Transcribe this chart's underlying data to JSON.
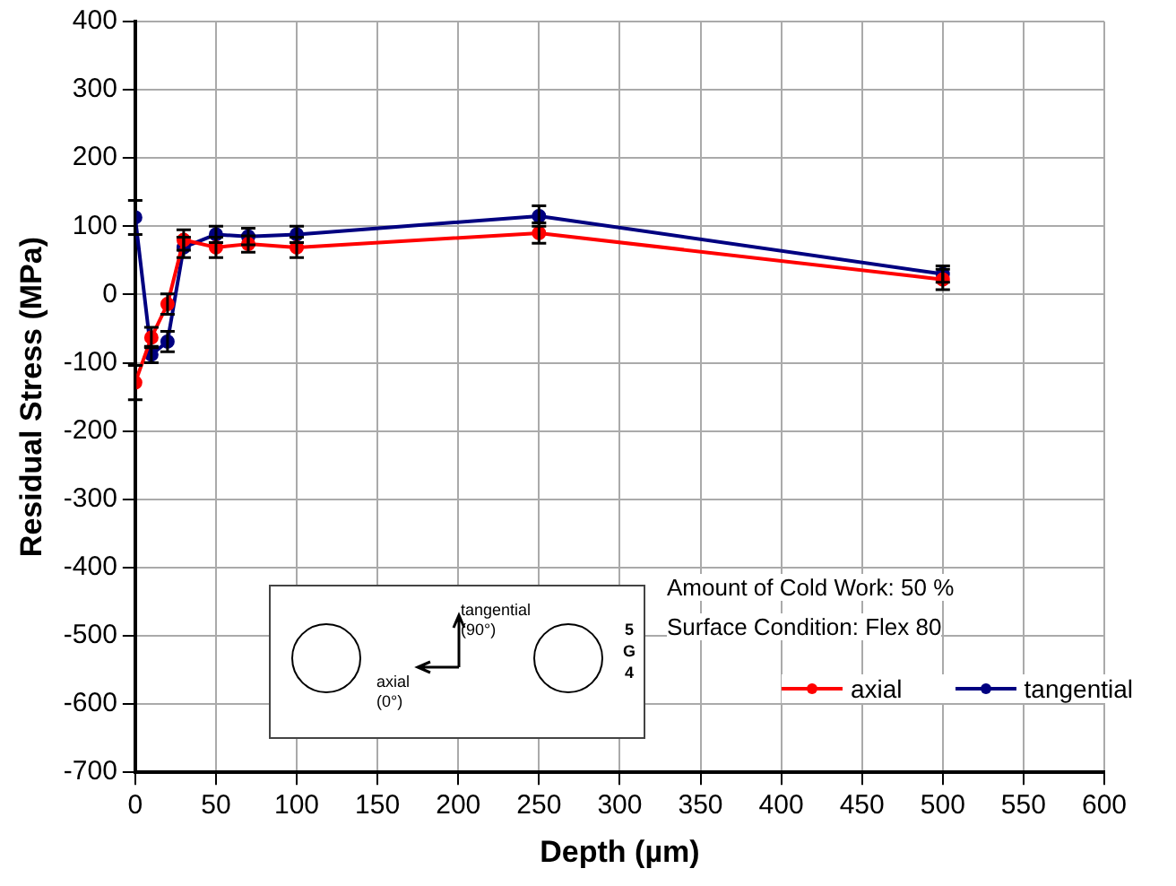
{
  "chart_data": {
    "type": "line",
    "xlabel": "Depth (µm)",
    "ylabel": "Residual Stress (MPa)",
    "x": [
      0,
      10,
      20,
      30,
      50,
      70,
      100,
      250,
      500
    ],
    "series": [
      {
        "name": "axial",
        "color": "#ff0000",
        "values": [
          -129,
          -63,
          -14,
          80,
          69,
          74,
          69,
          90,
          22
        ],
        "errors": [
          25,
          15,
          15,
          15,
          15,
          12,
          15,
          15,
          15
        ]
      },
      {
        "name": "tangential",
        "color": "#000080",
        "values": [
          113,
          -88,
          -69,
          69,
          88,
          85,
          88,
          115,
          30
        ],
        "errors": [
          25,
          12,
          15,
          15,
          12,
          12,
          12,
          15,
          12
        ]
      }
    ],
    "xlim": [
      0,
      600
    ],
    "xticks": [
      0,
      50,
      100,
      150,
      200,
      250,
      300,
      350,
      400,
      450,
      500,
      550,
      600
    ],
    "ylim": [
      -700,
      400
    ],
    "yticks": [
      -700,
      -600,
      -500,
      -400,
      -300,
      -200,
      -100,
      0,
      100,
      200,
      300,
      400
    ],
    "grid": true,
    "legend": "bottom right",
    "marker": "circle",
    "line_style": "solid",
    "annotations": [
      "Amount of Cold Work: 50 %",
      "Surface Condition: Flex 80",
      "tangential (90°)",
      "axial (0°)",
      "5 G 4"
    ]
  }
}
